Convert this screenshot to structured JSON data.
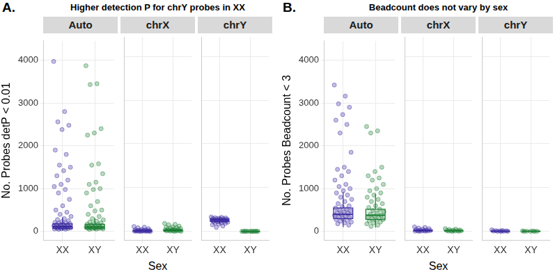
{
  "chart_data": [
    {
      "type": "scatter",
      "panel_label": "A.",
      "title": "Higher detection P for chrY probes in XX",
      "x_label": "Sex",
      "y_label": "No. Probes detP < 0.01",
      "categories": [
        "XX",
        "XY"
      ],
      "ylim": [
        -200,
        4450
      ],
      "yticks": [
        0,
        1000,
        2000,
        3000,
        4000
      ],
      "grid": true,
      "facets": [
        {
          "name": "Auto",
          "series": [
            {
              "color": "#3a2aa0",
              "values": [
                3970,
                2800,
                2560,
                2480,
                2380,
                1900,
                1800,
                1550,
                1500,
                1420,
                1300,
                1200,
                1100,
                1050,
                980,
                900,
                750,
                600,
                500,
                450,
                400,
                350,
                300,
                280,
                250,
                230,
                210,
                200,
                190,
                180,
                170,
                160,
                150,
                140,
                130,
                120,
                115,
                110,
                105,
                100,
                95,
                90,
                85,
                80,
                75,
                70,
                65,
                60,
                55,
                50
              ],
              "box": {
                "min": 20,
                "q1": 70,
                "median": 110,
                "q3": 180,
                "max": 330
              }
            },
            {
              "color": "#1b7d32",
              "values": [
                3870,
                3450,
                3430,
                2400,
                2300,
                2250,
                1580,
                1550,
                1350,
                1150,
                1100,
                1000,
                980,
                900,
                700,
                600,
                500,
                480,
                400,
                350,
                300,
                270,
                240,
                220,
                200,
                185,
                170,
                160,
                150,
                140,
                130,
                120,
                110,
                105,
                100,
                95,
                90,
                85,
                80,
                75,
                70,
                65,
                60,
                55,
                50
              ],
              "box": {
                "min": 20,
                "q1": 65,
                "median": 105,
                "q3": 170,
                "max": 320
              }
            }
          ]
        },
        {
          "name": "chrX",
          "series": [
            {
              "color": "#3a2aa0",
              "values": [
                110,
                95,
                80,
                60,
                45,
                35,
                30,
                25,
                20,
                18,
                15,
                12,
                10,
                8,
                6,
                5,
                4,
                3,
                2,
                1,
                0,
                0
              ],
              "box": {
                "min": 0,
                "q1": 2,
                "median": 6,
                "q3": 15,
                "max": 35
              }
            },
            {
              "color": "#1b7d32",
              "values": [
                180,
                160,
                150,
                120,
                100,
                90,
                80,
                70,
                60,
                50,
                45,
                40,
                35,
                30,
                25,
                20,
                15,
                12,
                10,
                8,
                5,
                3,
                0
              ],
              "box": {
                "min": 0,
                "q1": 5,
                "median": 15,
                "q3": 35,
                "max": 80
              }
            }
          ]
        },
        {
          "name": "chrY",
          "series": [
            {
              "color": "#3a2aa0",
              "values": [
                330,
                320,
                310,
                305,
                300,
                295,
                290,
                285,
                280,
                275,
                270,
                265,
                260,
                255,
                250,
                245,
                240,
                235,
                230,
                225,
                220,
                210,
                200,
                190,
                180,
                165,
                150,
                120,
                90
              ],
              "box": {
                "min": 160,
                "q1": 225,
                "median": 255,
                "q3": 285,
                "max": 335
              }
            },
            {
              "color": "#1b7d32",
              "values": [
                0,
                0,
                0,
                1,
                0,
                2,
                0,
                1,
                0,
                0,
                0,
                1
              ],
              "box": {
                "min": 0,
                "q1": 0,
                "median": 0,
                "q3": 1,
                "max": 2
              }
            }
          ]
        }
      ]
    },
    {
      "type": "scatter",
      "panel_label": "B.",
      "title": "Beadcount does not vary by sex",
      "x_label": "Sex",
      "y_label": "No. Probes Beadcount < 3",
      "categories": [
        "XX",
        "XY"
      ],
      "ylim": [
        -200,
        4450
      ],
      "yticks": [
        0,
        1000,
        2000,
        3000,
        4000
      ],
      "grid": true,
      "facets": [
        {
          "name": "Auto",
          "series": [
            {
              "color": "#3a2aa0",
              "values": [
                3420,
                3160,
                2980,
                2900,
                2730,
                2600,
                2500,
                2300,
                1850,
                1500,
                1450,
                1400,
                1300,
                1200,
                1100,
                1050,
                1000,
                950,
                900,
                850,
                800,
                750,
                700,
                650,
                600,
                580,
                550,
                520,
                500,
                480,
                460,
                440,
                420,
                400,
                380,
                360,
                340,
                320,
                300,
                280,
                260,
                240,
                220,
                200,
                180,
                150
              ],
              "box": {
                "min": 100,
                "q1": 300,
                "median": 400,
                "q3": 550,
                "max": 920
              }
            },
            {
              "color": "#1b7d32",
              "values": [
                2450,
                2350,
                2300,
                1500,
                1400,
                1300,
                1250,
                1200,
                1100,
                1000,
                950,
                900,
                850,
                800,
                750,
                700,
                650,
                600,
                560,
                520,
                490,
                460,
                430,
                400,
                380,
                360,
                340,
                320,
                300,
                280,
                260,
                240,
                220,
                200,
                180,
                150,
                120
              ],
              "box": {
                "min": 90,
                "q1": 280,
                "median": 380,
                "q3": 520,
                "max": 880
              }
            }
          ]
        },
        {
          "name": "chrX",
          "series": [
            {
              "color": "#3a2aa0",
              "values": [
                100,
                90,
                75,
                60,
                50,
                40,
                30,
                25,
                20,
                15,
                12,
                10,
                8,
                5,
                3,
                0
              ],
              "box": {
                "min": 0,
                "q1": 5,
                "median": 12,
                "q3": 25,
                "max": 50
              }
            },
            {
              "color": "#1b7d32",
              "values": [
                60,
                50,
                40,
                30,
                25,
                20,
                15,
                12,
                10,
                8,
                5,
                3,
                0
              ],
              "box": {
                "min": 0,
                "q1": 4,
                "median": 10,
                "q3": 18,
                "max": 35
              }
            }
          ]
        },
        {
          "name": "chrY",
          "series": [
            {
              "color": "#3a2aa0",
              "values": [
                35,
                20,
                15,
                10,
                8,
                5,
                3,
                2,
                1,
                0
              ],
              "box": {
                "min": 0,
                "q1": 1,
                "median": 3,
                "q3": 6,
                "max": 12
              }
            },
            {
              "color": "#1b7d32",
              "values": [
                10,
                6,
                4,
                2,
                1,
                0,
                0
              ],
              "box": {
                "min": 0,
                "q1": 0,
                "median": 1,
                "q3": 3,
                "max": 6
              }
            }
          ]
        }
      ]
    }
  ]
}
